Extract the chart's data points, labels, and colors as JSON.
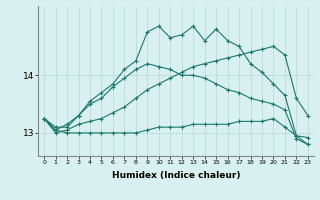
{
  "xlabel": "Humidex (Indice chaleur)",
  "bg_color": "#d8f0f0",
  "grid_color": "#b8d8d8",
  "line_color": "#1a7a6a",
  "xlim": [
    -0.5,
    23.5
  ],
  "ylim": [
    12.6,
    15.2
  ],
  "yticks": [
    13,
    14
  ],
  "xticks": [
    0,
    1,
    2,
    3,
    4,
    5,
    6,
    7,
    8,
    9,
    10,
    11,
    12,
    13,
    14,
    15,
    16,
    17,
    18,
    19,
    20,
    21,
    22,
    23
  ],
  "series": [
    [
      13.25,
      13.05,
      13.0,
      13.0,
      13.0,
      13.0,
      13.0,
      13.0,
      13.0,
      13.05,
      13.1,
      13.1,
      13.1,
      13.15,
      13.15,
      13.15,
      13.15,
      13.2,
      13.2,
      13.2,
      13.25,
      13.1,
      12.95,
      12.92
    ],
    [
      13.25,
      13.0,
      13.05,
      13.15,
      13.2,
      13.25,
      13.35,
      13.45,
      13.6,
      13.75,
      13.85,
      13.95,
      14.05,
      14.15,
      14.2,
      14.25,
      14.3,
      14.35,
      14.4,
      14.45,
      14.5,
      14.35,
      13.6,
      13.3
    ],
    [
      13.25,
      13.05,
      13.15,
      13.3,
      13.5,
      13.6,
      13.8,
      13.95,
      14.1,
      14.2,
      14.15,
      14.1,
      14.0,
      14.0,
      13.95,
      13.85,
      13.75,
      13.7,
      13.6,
      13.55,
      13.5,
      13.4,
      12.9,
      12.8
    ],
    [
      13.25,
      13.1,
      13.1,
      13.3,
      13.55,
      13.7,
      13.85,
      14.1,
      14.25,
      14.75,
      14.85,
      14.65,
      14.7,
      14.85,
      14.6,
      14.8,
      14.6,
      14.5,
      14.2,
      14.05,
      13.85,
      13.65,
      12.95,
      12.8
    ]
  ]
}
